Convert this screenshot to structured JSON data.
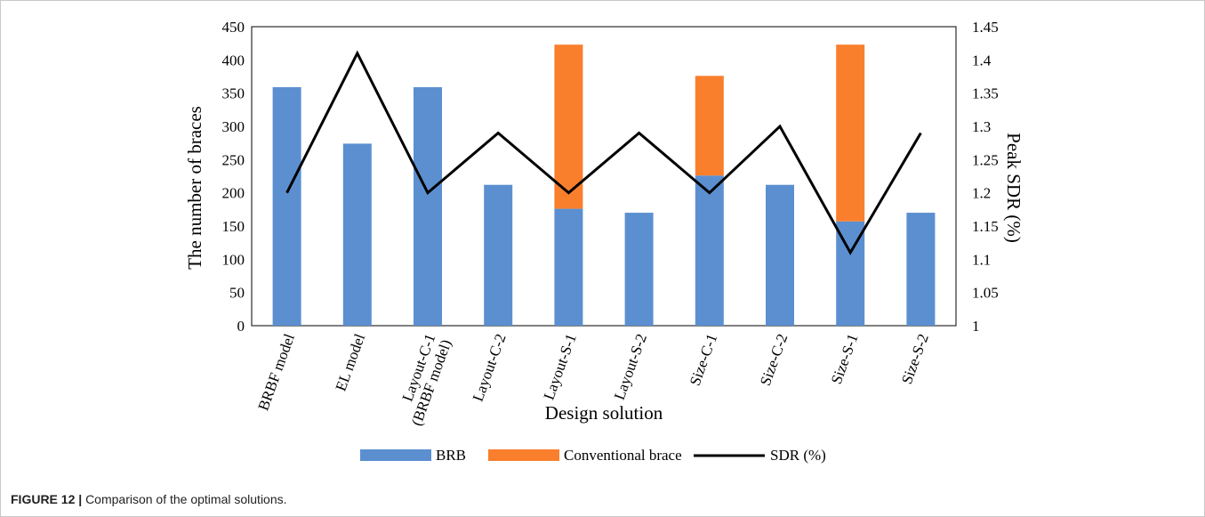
{
  "caption": {
    "label": "FIGURE 12 |",
    "text": "Comparison of the optimal solutions."
  },
  "chart_data": {
    "type": "bar",
    "stacked": true,
    "categories": [
      [
        "BRBF model"
      ],
      [
        "EL model"
      ],
      [
        "Layout-C-1",
        "(BRBF model)"
      ],
      [
        "Layout-C-2"
      ],
      [
        "Layout-S-1"
      ],
      [
        "Layout-S-2"
      ],
      [
        "Size-C-1"
      ],
      [
        "Size-C-2"
      ],
      [
        "Size-S-1"
      ],
      [
        "Size-S-2"
      ]
    ],
    "series": [
      {
        "name": "BRB",
        "type": "bar",
        "axis": "left",
        "color": "#5b8fd0",
        "values": [
          359,
          274,
          359,
          212,
          176,
          170,
          226,
          212,
          157,
          170
        ]
      },
      {
        "name": "Conventional brace",
        "type": "bar",
        "axis": "left",
        "color": "#f97f2d",
        "values": [
          0,
          0,
          0,
          0,
          247,
          0,
          150,
          0,
          266,
          0
        ]
      },
      {
        "name": "SDR (%)",
        "type": "line",
        "axis": "right",
        "color": "#000000",
        "values": [
          1.2,
          1.41,
          1.2,
          1.29,
          1.2,
          1.29,
          1.2,
          1.3,
          1.11,
          1.29
        ]
      }
    ],
    "xlabel": "Design solution",
    "ylabel": "The number of  braces",
    "y2label": "Peak SDR (%)",
    "ylim": [
      0,
      450
    ],
    "yticks": [
      "0",
      "50",
      "100",
      "150",
      "200",
      "250",
      "300",
      "350",
      "400",
      "450"
    ],
    "y2lim": [
      1,
      1.45
    ],
    "y2ticks": [
      "1",
      "1.05",
      "1.1",
      "1.15",
      "1.2",
      "1.25",
      "1.3",
      "1.35",
      "1.4",
      "1.45"
    ],
    "grid": false,
    "legend_position": "bottom"
  }
}
